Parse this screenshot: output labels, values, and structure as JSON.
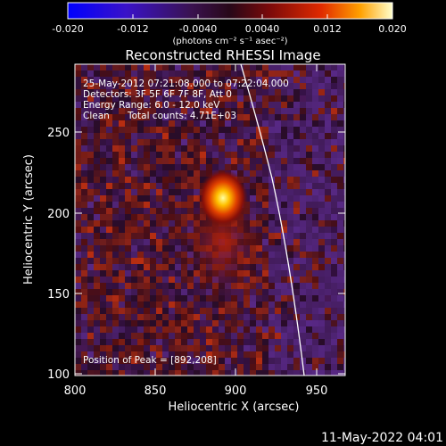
{
  "colorbar": {
    "ticks": [
      "-0.020",
      "-0.012",
      "-0.0040",
      "0.0040",
      "0.012",
      "0.020"
    ],
    "unit_label": "(photons cm⁻² s⁻¹ asec⁻²)"
  },
  "plot": {
    "title": "Reconstructed RHESSI Image",
    "xlabel": "Heliocentric X (arcsec)",
    "ylabel": "Heliocentric Y (arcsec)",
    "xticks": [
      "800",
      "850",
      "900",
      "950"
    ],
    "yticks": [
      "100",
      "150",
      "200",
      "250"
    ],
    "info": {
      "time": "25-May-2012 07:21:08.000 to 07:22:04.000",
      "detectors": "Detectors: 3F 5F 6F 7F 8F, Att 0",
      "energy": "Energy Range: 6.0 - 12.0 keV",
      "clean": "Clean",
      "counts": "Total counts: 4.71E+03"
    },
    "peak_label": "Position of Peak = [892,208]"
  },
  "footer": {
    "timestamp": "11-May-2022 04:01"
  }
}
